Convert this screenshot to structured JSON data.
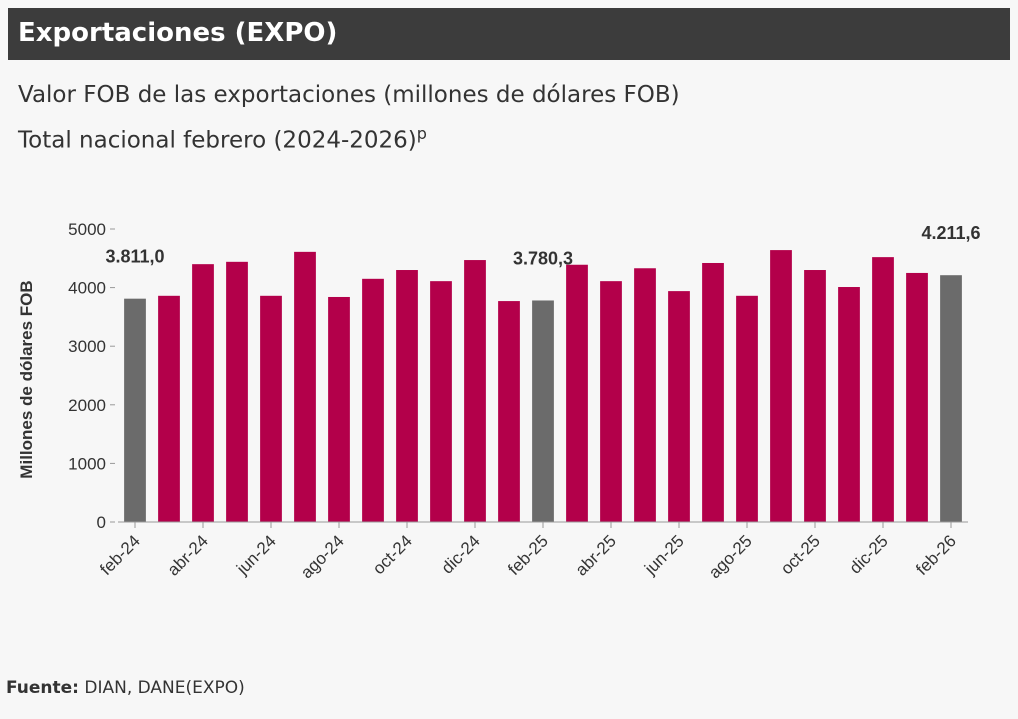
{
  "header": {
    "title": "Exportaciones (EXPO)"
  },
  "chart_data": {
    "type": "bar",
    "title": "Valor FOB de las exportaciones (millones de dólares FOB)",
    "subtitle": "Total nacional febrero (2024-2026)",
    "subtitle_superscript": "p",
    "y_label": "Millones de dólares FOB",
    "categories": [
      "feb-24",
      null,
      "abr-24",
      null,
      "jun-24",
      null,
      "ago-24",
      null,
      "oct-24",
      null,
      "dic-24",
      null,
      "feb-25",
      null,
      "abr-25",
      null,
      "jun-25",
      null,
      "ago-25",
      null,
      "oct-25",
      null,
      "dic-25",
      null,
      "feb-26"
    ],
    "values": [
      3811.0,
      3860,
      4400,
      4440,
      3860,
      4610,
      3840,
      4150,
      4300,
      4110,
      4470,
      3770,
      3780.3,
      4390,
      4110,
      4330,
      3940,
      4420,
      3860,
      4640,
      4300,
      4010,
      4520,
      4250,
      4211.6
    ],
    "value_labels": [
      "3.811,0",
      null,
      null,
      null,
      null,
      null,
      null,
      null,
      null,
      null,
      null,
      null,
      "3.780,3",
      null,
      null,
      null,
      null,
      null,
      null,
      null,
      null,
      null,
      null,
      null,
      "4.211,6"
    ],
    "colors": [
      "#6b6b6b",
      "#b3004a",
      "#b3004a",
      "#b3004a",
      "#b3004a",
      "#b3004a",
      "#b3004a",
      "#b3004a",
      "#b3004a",
      "#b3004a",
      "#b3004a",
      "#b3004a",
      "#6b6b6b",
      "#b3004a",
      "#b3004a",
      "#b3004a",
      "#b3004a",
      "#b3004a",
      "#b3004a",
      "#b3004a",
      "#b3004a",
      "#b3004a",
      "#b3004a",
      "#b3004a",
      "#6b6b6b"
    ],
    "ylim": [
      0,
      5000
    ],
    "yticks": [
      0,
      1000,
      2000,
      3000,
      4000,
      5000
    ],
    "grid": false
  },
  "footer": {
    "source_label": "Fuente:",
    "source": "DIAN, DANE(EXPO)"
  }
}
